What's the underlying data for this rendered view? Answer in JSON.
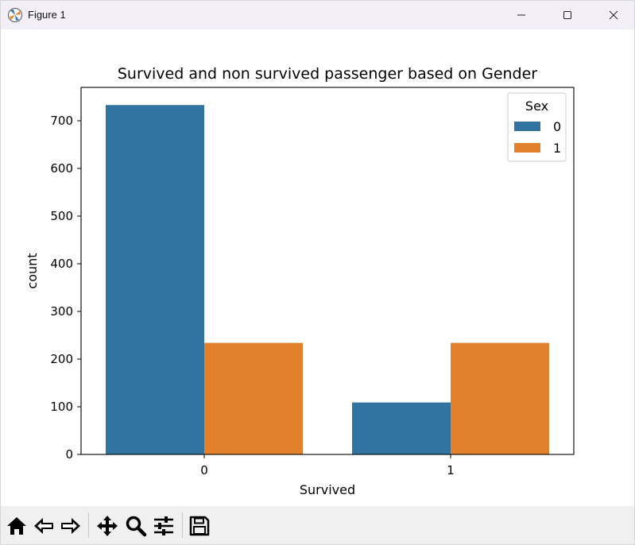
{
  "window": {
    "title": "Figure 1"
  },
  "chart_data": {
    "type": "bar",
    "title": "Survived and non survived passenger based on Gender",
    "xlabel": "Survived",
    "ylabel": "count",
    "categories": [
      "0",
      "1"
    ],
    "series": [
      {
        "name": "0",
        "values": [
          733,
          109
        ],
        "color": "#3274a1"
      },
      {
        "name": "1",
        "values": [
          234,
          234
        ],
        "color": "#e1812c"
      }
    ],
    "ylim": [
      0,
      770
    ],
    "yticks": [
      0,
      100,
      200,
      300,
      400,
      500,
      600,
      700
    ],
    "legend": {
      "title": "Sex",
      "placement": "top-right"
    },
    "grid": false
  },
  "toolbar": {
    "icons": [
      "home-icon",
      "back-arrow-icon",
      "forward-arrow-icon",
      "pan-move-icon",
      "zoom-magnifier-icon",
      "configure-sliders-icon",
      "save-floppy-icon"
    ]
  }
}
